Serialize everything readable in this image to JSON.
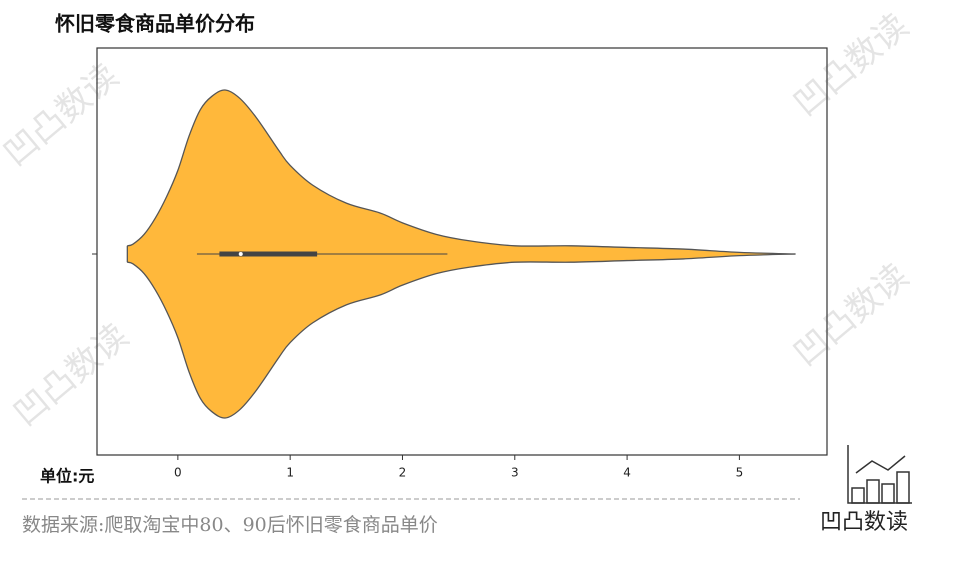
{
  "chart_data": {
    "type": "violin",
    "title": "怀旧零食商品单价分布",
    "x": [
      -0.45,
      -0.4,
      -0.3,
      -0.2,
      -0.1,
      0,
      0.1,
      0.2,
      0.3,
      0.42,
      0.55,
      0.7,
      0.9,
      1.0,
      1.2,
      1.5,
      1.8,
      2.0,
      2.3,
      2.6,
      3.0,
      3.5,
      4.0,
      4.5,
      5.0,
      5.5
    ],
    "values": [
      0.05,
      0.06,
      0.12,
      0.22,
      0.35,
      0.51,
      0.72,
      0.88,
      0.96,
      1.0,
      0.95,
      0.83,
      0.63,
      0.54,
      0.42,
      0.31,
      0.25,
      0.19,
      0.12,
      0.08,
      0.05,
      0.05,
      0.04,
      0.03,
      0.01,
      0
    ],
    "box": {
      "whisker_low": 0.17,
      "q1": 0.37,
      "median": 0.56,
      "q3": 1.24,
      "whisker_high": 2.4
    },
    "color": "#ffb83b",
    "xlim": [
      -0.72,
      5.78
    ],
    "xticks": [
      0,
      1,
      2,
      3,
      4,
      5
    ],
    "unit_label": "单位:元",
    "source": "数据来源:爬取淘宝中80、90后怀旧零食商品单价"
  },
  "watermark": "凹凸数读",
  "logo": "凹凸数读"
}
